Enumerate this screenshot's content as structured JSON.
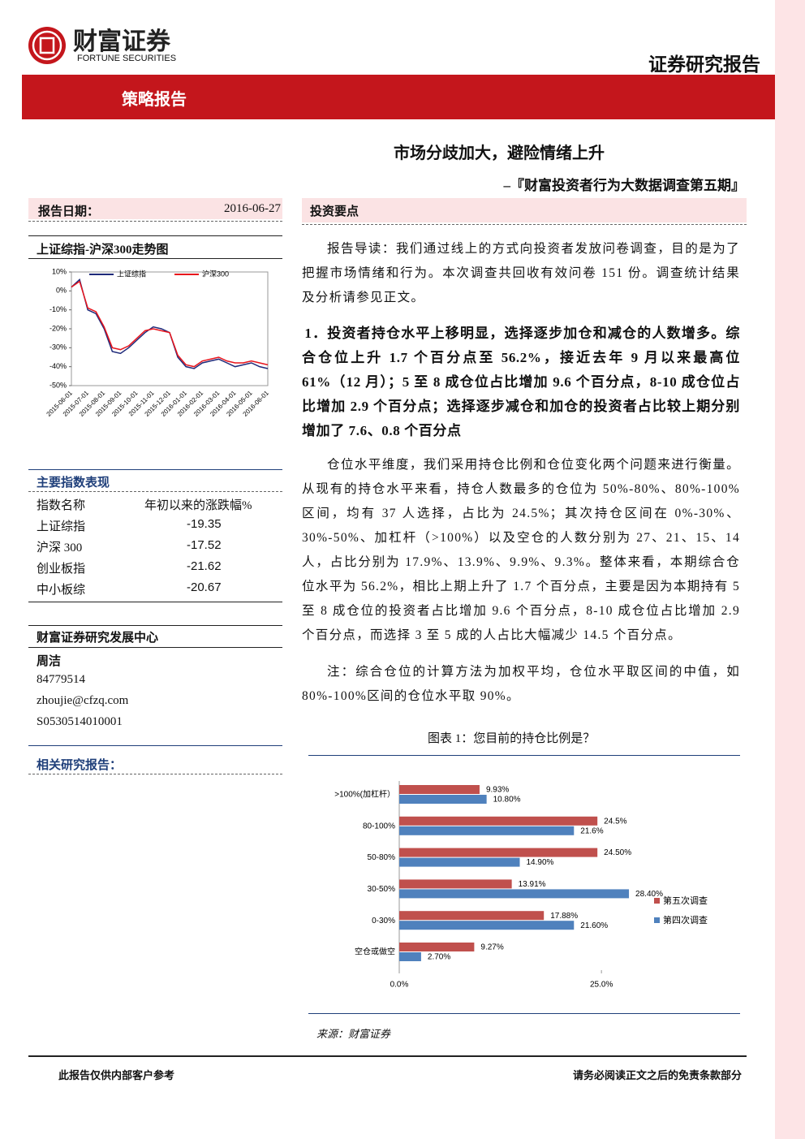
{
  "header": {
    "logo_cn": "财富证券",
    "logo_en": "FORTUNE SECURITIES",
    "report_type": "证券研究报告",
    "banner": "策略报告"
  },
  "title": "市场分歧加大，避险情绪上升",
  "subtitle": "–『财富投资者行为大数据调查第五期』",
  "sidebar": {
    "date_label": "报告日期：",
    "date": "2016-06-27",
    "chart_title": "上证综指-沪深300走势图",
    "index_chart": {
      "type": "line",
      "categories": [
        "2015-06-01",
        null,
        "2015-07-01",
        null,
        "2015-08-01",
        null,
        "2015-09-01",
        null,
        "2015-10-01",
        null,
        "2015-11-01",
        null,
        "2015-12-01",
        null,
        "2016-01-01",
        null,
        "2016-02-01",
        null,
        "2016-03-01",
        null,
        "2016-04-01",
        null,
        "2016-05-01",
        null,
        "2016-06-01"
      ],
      "series": [
        {
          "name": "上证综指",
          "color": "#1f2a7a",
          "values": [
            2,
            6,
            -10,
            -12,
            -20,
            -32,
            -33,
            -30,
            -26,
            -22,
            -19,
            -20,
            -22,
            -35,
            -40,
            -41,
            -38,
            -37,
            -36,
            -38,
            -40,
            -39,
            -38,
            -40,
            -41
          ]
        },
        {
          "name": "沪深300",
          "color": "#e8141c",
          "values": [
            2,
            5,
            -9,
            -11,
            -19,
            -30,
            -31,
            -29,
            -25,
            -21,
            -20,
            -21,
            -22,
            -34,
            -39,
            -40,
            -37,
            -36,
            -35,
            -37,
            -38,
            -38,
            -37,
            -38,
            -39
          ]
        }
      ],
      "ylim": [
        -50,
        10
      ],
      "yticks": [
        {
          "value": 10,
          "label": "10%"
        },
        {
          "value": 0,
          "label": "0%"
        },
        {
          "value": -10,
          "label": "-10%"
        },
        {
          "value": -20,
          "label": "-20%"
        },
        {
          "value": -30,
          "label": "-30%"
        },
        {
          "value": -40,
          "label": "-40%"
        },
        {
          "value": -50,
          "label": "-50%"
        }
      ]
    },
    "indices": {
      "title": "主要指数表现",
      "header": [
        "指数名称",
        "年初以来的涨跌幅%"
      ],
      "rows": [
        [
          "上证综指",
          -19.35
        ],
        [
          "沪深 300",
          -17.52
        ],
        [
          "创业板指",
          -21.62
        ],
        [
          "中小板综",
          -20.67
        ]
      ]
    },
    "center": "财富证券研究发展中心",
    "analyst": {
      "name": "周洁",
      "phone": "84779514",
      "email": "zhoujie@cfzq.com",
      "license": "S0530514010001"
    },
    "related": "相关研究报告："
  },
  "main": {
    "section": "投资要点",
    "intro": "报告导读：我们通过线上的方式向投资者发放问卷调查，目的是为了把握市场情绪和行为。本次调查共回收有效问卷 151 份。调查统计结果及分析请参见正文。",
    "heading": "1．投资者持仓水平上移明显，选择逐步加仓和减仓的人数增多。综合仓位上升 1.7 个百分点至 56.2%，接近去年 9 月以来最高位 61%（12 月）；5 至 8 成仓位占比增加 9.6 个百分点，8-10 成仓位占比增加 2.9 个百分点；选择逐步减仓和加仓的投资者占比较上期分别增加了 7.6、0.8 个百分点",
    "body": "仓位水平维度，我们采用持仓比例和仓位变化两个问题来进行衡量。从现有的持仓水平来看，持仓人数最多的仓位为 50%-80%、80%-100%区间，均有 37 人选择，占比为 24.5%；其次持仓区间在 0%-30%、30%-50%、加杠杆（>100%）以及空仓的人数分别为 27、21、15、14 人，占比分别为 17.9%、13.9%、9.9%、9.3%。整体来看，本期综合仓位水平为 56.2%，相比上期上升了 1.7 个百分点，主要是因为本期持有 5 至 8 成仓位的投资者占比增加 9.6 个百分点，8-10 成仓位占比增加 2.9 个百分点，而选择 3 至 5 成的人占比大幅减少 14.5 个百分点。",
    "note": "注：综合仓位的计算方法为加权平均，仓位水平取区间的中值，如 80%-100%区间的仓位水平取 90%。",
    "figure_caption": "图表 1：您目前的持仓比例是？",
    "chart_data": {
      "type": "barh",
      "categories": [
        ">100%(加杠杆）",
        "80-100%",
        "50-80%",
        "30-50%",
        "0-30%",
        "空仓或做空"
      ],
      "series": [
        {
          "name": "第五次调查",
          "color": "#c0504d",
          "values": [
            9.93,
            24.5,
            24.5,
            13.91,
            17.88,
            9.27
          ],
          "value_labels": [
            "9.93%",
            "24.5%",
            "24.50%",
            "13.91%",
            "17.88%",
            "9.27%"
          ]
        },
        {
          "name": "第四次调查",
          "color": "#4f81bd",
          "values": [
            10.8,
            21.6,
            14.9,
            28.4,
            21.6,
            2.7
          ],
          "value_labels": [
            "10.80%",
            "21.6%",
            "14.90%",
            "28.40%",
            "21.60%",
            "2.70%"
          ]
        }
      ],
      "xlim": [
        0,
        30
      ],
      "xticks": [
        {
          "value": 0,
          "label": "0.0%"
        },
        {
          "value": 25,
          "label": "25.0%"
        }
      ],
      "legend": "right"
    },
    "source": "来源：财富证券"
  },
  "footer": {
    "left": "此报告仅供内部客户参考",
    "right": "请务必阅读正文之后的免责条款部分"
  }
}
